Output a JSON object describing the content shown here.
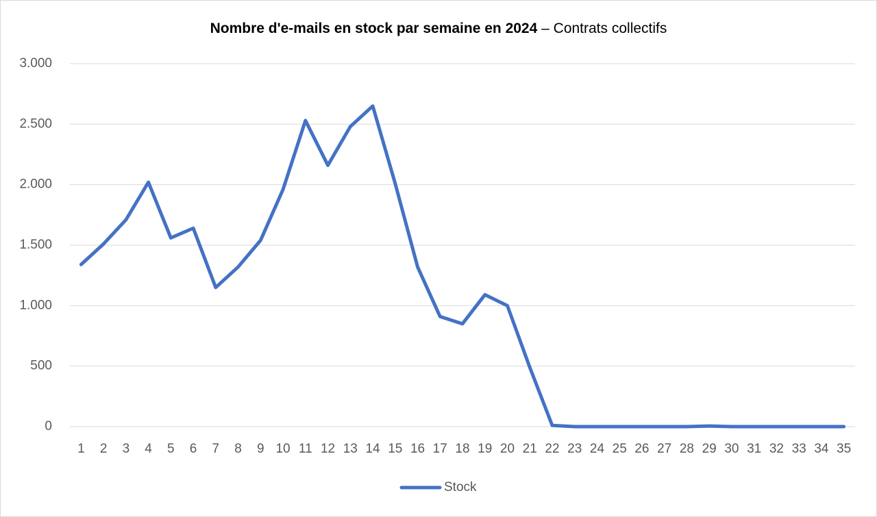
{
  "chart_data": {
    "type": "line",
    "title": "Nombre d'e-mails en stock par semaine en 2024",
    "subtitle": "– Contrats collectifs",
    "categories": [
      "1",
      "2",
      "3",
      "4",
      "5",
      "6",
      "7",
      "8",
      "9",
      "10",
      "11",
      "12",
      "13",
      "14",
      "15",
      "16",
      "17",
      "18",
      "19",
      "20",
      "21",
      "22",
      "23",
      "24",
      "25",
      "26",
      "27",
      "28",
      "29",
      "30",
      "31",
      "32",
      "33",
      "34",
      "35"
    ],
    "series": [
      {
        "name": "Stock",
        "color": "#4472c4",
        "values": [
          1340,
          1510,
          1710,
          2020,
          1560,
          1640,
          1150,
          1320,
          1540,
          1960,
          2530,
          2160,
          2480,
          2650,
          2010,
          1320,
          910,
          850,
          1090,
          1000,
          490,
          10,
          0,
          0,
          0,
          0,
          0,
          0,
          5,
          0,
          0,
          0,
          0,
          0,
          0
        ]
      }
    ],
    "ylim": [
      0,
      3000
    ],
    "yticks": [
      0,
      500,
      {
        "value": 1000,
        "label": "1.000"
      },
      {
        "value": 1500,
        "label": "1.500"
      },
      {
        "value": 2000,
        "label": "2.000"
      },
      {
        "value": 2500,
        "label": "2.500"
      },
      {
        "value": 3000,
        "label": "3.000"
      }
    ],
    "grid": true,
    "legend": "bottom"
  }
}
